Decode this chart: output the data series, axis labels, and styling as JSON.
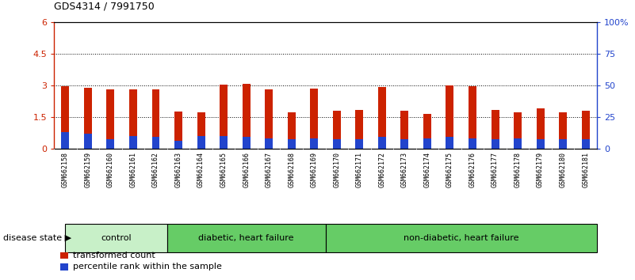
{
  "title": "GDS4314 / 7991750",
  "samples": [
    "GSM662158",
    "GSM662159",
    "GSM662160",
    "GSM662161",
    "GSM662162",
    "GSM662163",
    "GSM662164",
    "GSM662165",
    "GSM662166",
    "GSM662167",
    "GSM662168",
    "GSM662169",
    "GSM662170",
    "GSM662171",
    "GSM662172",
    "GSM662173",
    "GSM662174",
    "GSM662175",
    "GSM662176",
    "GSM662177",
    "GSM662178",
    "GSM662179",
    "GSM662180",
    "GSM662181"
  ],
  "red_values": [
    2.95,
    2.9,
    2.8,
    2.82,
    2.82,
    1.75,
    1.7,
    3.05,
    3.07,
    2.82,
    1.72,
    2.83,
    1.78,
    1.83,
    2.92,
    1.8,
    1.64,
    3.0,
    2.95,
    1.82,
    1.72,
    1.92,
    1.7,
    1.8
  ],
  "blue_values_pct": [
    13,
    12,
    7,
    10,
    9,
    6,
    10,
    10,
    9,
    8,
    7,
    8,
    7,
    7,
    9,
    7,
    8,
    9,
    8,
    7,
    8,
    7,
    7,
    7
  ],
  "ylim_left": [
    0,
    6
  ],
  "ylim_right": [
    0,
    100
  ],
  "yticks_left": [
    0,
    1.5,
    3.0,
    4.5,
    6.0
  ],
  "ytick_labels_left": [
    "0",
    "1.5",
    "3",
    "4.5",
    "6"
  ],
  "yticks_right": [
    0,
    25,
    50,
    75,
    100
  ],
  "ytick_labels_right": [
    "0",
    "25",
    "50",
    "75",
    "100%"
  ],
  "bar_color_red": "#CC2200",
  "bar_color_blue": "#2244CC",
  "label_color_red": "#CC2200",
  "label_color_blue": "#2244CC",
  "legend_red": "transformed count",
  "legend_blue": "percentile rank within the sample",
  "disease_state_label": "disease state",
  "bar_width": 0.35,
  "group_edges": [
    [
      0,
      4.5,
      "control",
      "#c8f0c8"
    ],
    [
      4.5,
      11.5,
      "diabetic, heart failure",
      "#66cc66"
    ],
    [
      11.5,
      23.5,
      "non-diabetic, heart failure",
      "#66cc66"
    ]
  ],
  "xtick_bg": "#d0d0d0",
  "plot_bg": "#ffffff"
}
